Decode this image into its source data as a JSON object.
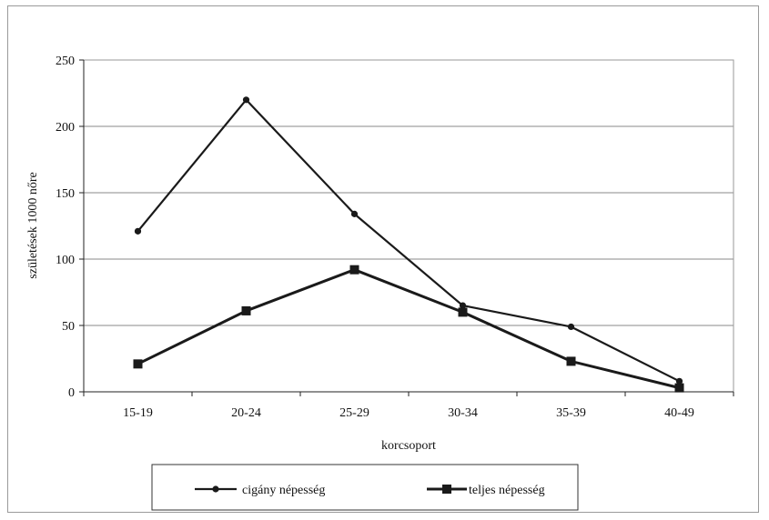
{
  "chart_data": {
    "type": "line",
    "categories": [
      "15-19",
      "20-24",
      "25-29",
      "30-34",
      "35-39",
      "40-49"
    ],
    "series": [
      {
        "name": "cigány népesség",
        "values": [
          121,
          220,
          134,
          65,
          49,
          8
        ],
        "marker": "circle",
        "color": "#1a1a1a"
      },
      {
        "name": "teljes népesség",
        "values": [
          21,
          61,
          92,
          60,
          23,
          3
        ],
        "marker": "square",
        "color": "#1a1a1a"
      }
    ],
    "xlabel": "korcsoport",
    "ylabel": "születések 1000 nőre",
    "ylim": [
      0,
      250
    ],
    "yticks": [
      0,
      50,
      100,
      150,
      200,
      250
    ],
    "grid": true,
    "legend": "bottom"
  }
}
